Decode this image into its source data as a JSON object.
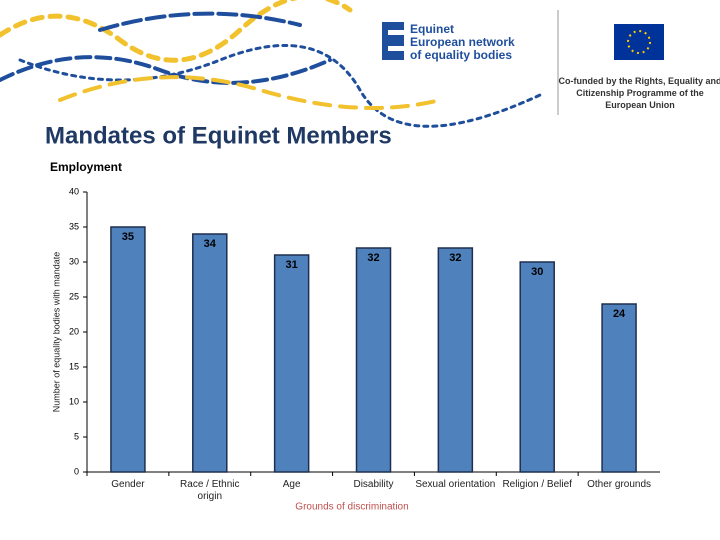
{
  "header": {
    "logo_lines": [
      "Equinet",
      "European network",
      "of equality bodies"
    ],
    "funding": "Co-funded by the Rights, Equality and Citizenship Programme of the European Union"
  },
  "chart_data": {
    "type": "bar",
    "title": "Mandates of Equinet Members",
    "subtitle": "Employment",
    "x_label": "Grounds of discrimination",
    "y_label": "Number of equality bodies with mandate",
    "categories": [
      "Gender",
      "Race / Ethnic origin",
      "Age",
      "Disability",
      "Sexual orientation",
      "Religion / Belief",
      "Other grounds"
    ],
    "values": [
      35,
      34,
      31,
      32,
      32,
      30,
      24
    ],
    "color": "#4f81bd",
    "ylim": [
      0,
      40
    ],
    "yticks": [
      0,
      5,
      10,
      15,
      20,
      25,
      30,
      35,
      40
    ],
    "grid": false
  }
}
